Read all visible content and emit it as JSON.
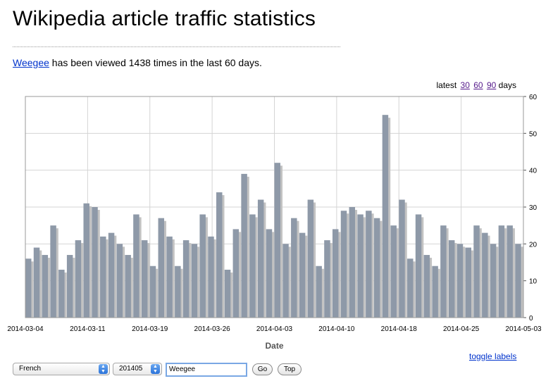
{
  "page": {
    "title": "Wikipedia article traffic statistics",
    "article_link": "Weegee",
    "summary_text": " has been viewed 1438 times in the last 60 days."
  },
  "range_selector": {
    "prefix": "latest",
    "options": [
      "30",
      "60",
      "90"
    ],
    "suffix": "days"
  },
  "chart_data": {
    "type": "bar",
    "xlabel": "Date",
    "ylabel": "",
    "ylim": [
      0,
      60
    ],
    "y_ticks": [
      0,
      10,
      20,
      30,
      40,
      50,
      60
    ],
    "x_tick_labels": [
      "2014-03-04",
      "2014-03-11",
      "2014-03-19",
      "2014-03-26",
      "2014-04-03",
      "2014-04-10",
      "2014-04-18",
      "2014-04-25",
      "2014-05-03"
    ],
    "values": [
      16,
      19,
      17,
      25,
      13,
      17,
      21,
      31,
      30,
      22,
      23,
      20,
      17,
      28,
      21,
      14,
      27,
      22,
      14,
      21,
      20,
      28,
      22,
      34,
      13,
      24,
      39,
      28,
      32,
      24,
      42,
      20,
      27,
      23,
      32,
      14,
      21,
      24,
      29,
      30,
      28,
      29,
      27,
      55,
      25,
      32,
      16,
      28,
      17,
      14,
      25,
      21,
      20,
      19,
      25,
      23,
      20,
      25,
      25,
      20
    ],
    "bar_color": "#8e99a8",
    "shadow_color": "#c2c2c2"
  },
  "toggle_labels": "toggle labels",
  "controls": {
    "language": "French",
    "month": "201405",
    "article_input": "Weegee",
    "go_label": "Go",
    "top_label": "Top"
  }
}
